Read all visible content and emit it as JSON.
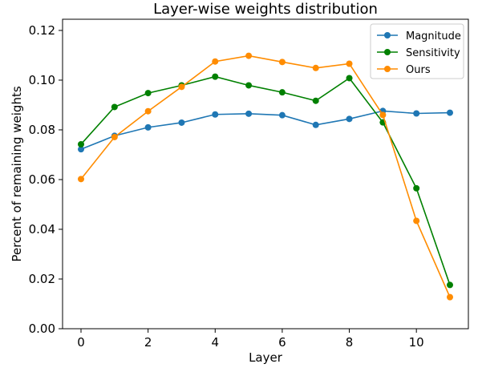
{
  "chart_data": {
    "type": "line",
    "title": "Layer-wise weights distribution",
    "xlabel": "Layer",
    "ylabel": "Percent of remaining weights",
    "x": [
      0,
      1,
      2,
      3,
      4,
      5,
      6,
      7,
      8,
      9,
      10,
      11
    ],
    "xlim": [
      -0.55,
      11.55
    ],
    "ylim": [
      0,
      0.1245
    ],
    "xticks": [
      0,
      2,
      4,
      6,
      8,
      10
    ],
    "yticks": [
      0.0,
      0.02,
      0.04,
      0.06,
      0.08,
      0.1,
      0.12
    ],
    "xtick_labels": [
      "0",
      "2",
      "4",
      "6",
      "8",
      "10"
    ],
    "ytick_labels": [
      "0.00",
      "0.02",
      "0.04",
      "0.06",
      "0.08",
      "0.10",
      "0.12"
    ],
    "grid": false,
    "legend_position": "top-right",
    "series": [
      {
        "name": "Magnitude",
        "color": "#1f77b4",
        "values": [
          0.0722,
          0.0776,
          0.081,
          0.0829,
          0.0862,
          0.0865,
          0.0859,
          0.082,
          0.0844,
          0.0876,
          0.0866,
          0.0869
        ]
      },
      {
        "name": "Sensitivity",
        "color": "#008000",
        "values": [
          0.0742,
          0.0892,
          0.0948,
          0.0979,
          0.1014,
          0.0979,
          0.0951,
          0.0917,
          0.1008,
          0.083,
          0.0565,
          0.0176
        ]
      },
      {
        "name": "Ours",
        "color": "#ff8c00",
        "values": [
          0.0602,
          0.0771,
          0.0875,
          0.0973,
          0.1075,
          0.1098,
          0.1073,
          0.1049,
          0.1066,
          0.086,
          0.0434,
          0.0127
        ]
      }
    ]
  }
}
